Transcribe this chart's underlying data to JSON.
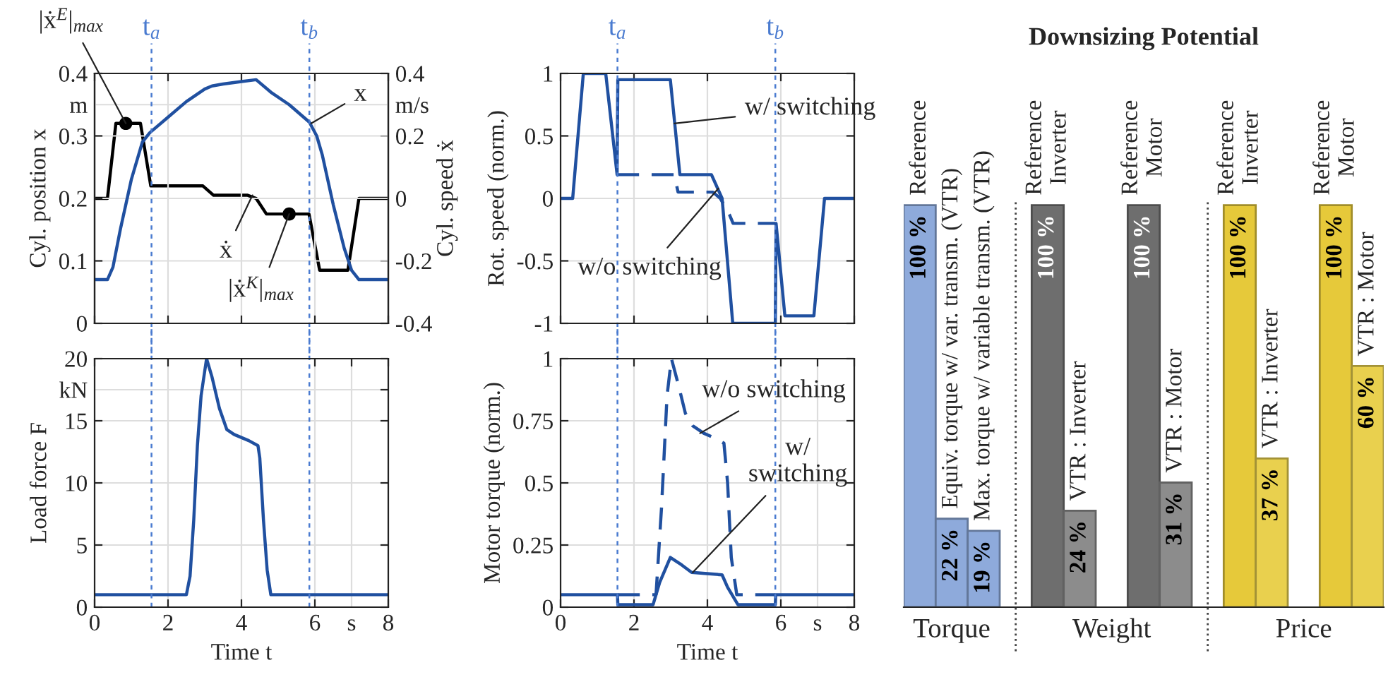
{
  "chart_data": [
    {
      "type": "line",
      "ylabel": "Cyl. position x",
      "y2label": "Cyl. speed ẋ",
      "xlim": [
        0,
        8
      ],
      "xticks": [
        0,
        2,
        4,
        6,
        8
      ],
      "ylim": [
        0,
        0.4
      ],
      "yticks": [
        0,
        0.1,
        0.2,
        0.3,
        {
          "value": 0.35,
          "label": "m"
        },
        0.4
      ],
      "y2lim": [
        -0.4,
        0.4
      ],
      "y2ticks": [
        -0.4,
        -0.2,
        0,
        0.2,
        {
          "value": 0.3,
          "label": "m/s"
        },
        0.4
      ],
      "tick_labels": "y",
      "grid": true,
      "series": [
        {
          "color": "#2050a0",
          "x": [
            0,
            0.35,
            0.5,
            0.7,
            1.0,
            1.3,
            1.5,
            2.0,
            2.5,
            3.0,
            3.2,
            3.5,
            4.0,
            4.4,
            4.8,
            5.3,
            5.85,
            6.05,
            6.2,
            6.5,
            6.8,
            7.0,
            7.2,
            8
          ],
          "values": [
            0.07,
            0.07,
            0.09,
            0.15,
            0.23,
            0.29,
            0.305,
            0.33,
            0.355,
            0.375,
            0.38,
            0.383,
            0.387,
            0.39,
            0.37,
            0.35,
            0.322,
            0.3,
            0.27,
            0.19,
            0.12,
            0.085,
            0.07,
            0.07
          ]
        },
        {
          "color": "#000000",
          "axis": "y2",
          "x": [
            0,
            0.35,
            0.58,
            1.25,
            1.53,
            2.95,
            3.24,
            4.17,
            4.4,
            4.68,
            5.84,
            6.13,
            6.9,
            7.2,
            8
          ],
          "values": [
            0,
            0,
            0.24,
            0.24,
            0.04,
            0.04,
            0.01,
            0.01,
            0,
            -0.05,
            -0.05,
            -0.23,
            -0.23,
            0,
            0
          ]
        },
        {
          "type": "scatter",
          "marker": "circle",
          "color": "#000000",
          "axis": "y2",
          "x": [
            0.85,
            5.3
          ],
          "values": [
            0.24,
            -0.05
          ]
        }
      ],
      "ref_lines": [
        {
          "axis": "x",
          "value": 1.55,
          "label": "t$_{a}$",
          "color": "#4a7bd0",
          "line_style": "dashed"
        },
        {
          "axis": "x",
          "value": 5.85,
          "label": "t$_{b}$",
          "color": "#4a7bd0",
          "line_style": "dashed"
        }
      ],
      "annotations": [
        {
          "text": "|ẋ$^{E}$|$_{max}$",
          "x": 0.85,
          "y": 0.32
        },
        {
          "text": "|ẋ$^{K}$|$_{max}$",
          "x": 5.3,
          "y": 0.175
        },
        {
          "text": "ẋ",
          "x": 4.3,
          "y": 0.205
        },
        {
          "text": "x",
          "x": 5.9,
          "y": 0.32
        }
      ]
    },
    {
      "type": "line",
      "ylabel": "Rot. speed (norm.)",
      "xlim": [
        0,
        8
      ],
      "xticks": [
        0,
        2,
        4,
        6,
        8
      ],
      "ylim": [
        -1,
        1
      ],
      "yticks": [
        -1,
        -0.5,
        0,
        0.5,
        1
      ],
      "tick_labels": "y",
      "grid": true,
      "series": [
        {
          "color": "#2050a0",
          "line_style": "dashed",
          "x": [
            1.54,
            3.1,
            3.2,
            4.15,
            4.35,
            4.6,
            4.7,
            5.85
          ],
          "values": [
            0.19,
            0.19,
            0.05,
            0.05,
            0,
            -0.13,
            -0.2,
            -0.2
          ]
        },
        {
          "color": "#2050a0",
          "x": [
            0,
            0.33,
            0.62,
            1.23,
            1.54,
            1.56,
            2.99,
            3.25,
            4.11,
            4.4,
            4.69,
            5.85,
            5.87,
            6.11,
            6.9,
            7.19,
            8
          ],
          "values": [
            0,
            0,
            1,
            1,
            0.19,
            0.95,
            0.95,
            0.19,
            0.19,
            0,
            -1,
            -1,
            -0.2,
            -0.94,
            -0.94,
            0,
            0
          ]
        }
      ],
      "ref_lines": [
        {
          "axis": "x",
          "value": 1.55,
          "label": "t$_{a}$",
          "color": "#4a7bd0",
          "line_style": "dashed"
        },
        {
          "axis": "x",
          "value": 5.85,
          "label": "t$_{b}$",
          "color": "#4a7bd0",
          "line_style": "dashed"
        }
      ],
      "annotations": [
        {
          "text": "w/ switching",
          "x": 3.1,
          "y": 0.6
        },
        {
          "text": "w/o switching",
          "x": 4.3,
          "y": 0.08
        }
      ]
    },
    {
      "type": "line",
      "ylabel": "Load force F",
      "xlabel": "Time t",
      "xlim": [
        0,
        8
      ],
      "xticks": [
        0,
        2,
        4,
        6,
        {
          "value": 7,
          "label": "s"
        },
        8
      ],
      "ylim": [
        0,
        20
      ],
      "yticks": [
        0,
        5,
        10,
        15,
        {
          "value": 17.5,
          "label": "kN"
        },
        20
      ],
      "grid": true,
      "series": [
        {
          "color": "#2050a0",
          "x": [
            0,
            2.5,
            2.6,
            2.7,
            2.8,
            2.9,
            3.05,
            3.2,
            3.4,
            3.6,
            3.8,
            4.2,
            4.45,
            4.5,
            4.6,
            4.7,
            4.8,
            8
          ],
          "values": [
            1,
            1,
            2.5,
            7,
            13,
            17,
            20,
            18.5,
            16,
            14.3,
            13.9,
            13.4,
            13,
            12,
            7,
            3,
            1,
            1
          ]
        }
      ],
      "ref_lines": [
        {
          "axis": "x",
          "value": 1.55,
          "color": "#4a7bd0",
          "line_style": "dashed"
        },
        {
          "axis": "x",
          "value": 5.85,
          "color": "#4a7bd0",
          "line_style": "dashed"
        }
      ]
    },
    {
      "type": "line",
      "ylabel": "Motor torque (norm.)",
      "xlabel": "Time t",
      "xlim": [
        0,
        8
      ],
      "xticks": [
        0,
        2,
        4,
        6,
        {
          "value": 7,
          "label": "s"
        },
        8
      ],
      "ylim": [
        0,
        1
      ],
      "yticks": [
        0,
        0.25,
        0.5,
        0.75,
        1
      ],
      "grid": true,
      "series": [
        {
          "color": "#2050a0",
          "line_style": "dashed",
          "x": [
            1.56,
            2.6,
            2.75,
            2.9,
            3.02,
            3.2,
            3.4,
            3.6,
            3.9,
            4.2,
            4.45,
            4.55,
            4.65,
            4.8,
            5.85
          ],
          "values": [
            0.05,
            0.05,
            0.4,
            0.85,
            1,
            0.9,
            0.78,
            0.73,
            0.7,
            0.68,
            0.66,
            0.5,
            0.2,
            0.05,
            0.05
          ]
        },
        {
          "color": "#2050a0",
          "x": [
            0,
            1.55,
            1.56,
            2.52,
            2.7,
            2.99,
            3.3,
            3.57,
            4.0,
            4.4,
            4.55,
            4.83,
            5.85,
            5.86,
            8
          ],
          "values": [
            0.05,
            0.05,
            0.01,
            0.01,
            0.1,
            0.2,
            0.17,
            0.14,
            0.135,
            0.13,
            0.08,
            0.01,
            0.01,
            0.05,
            0.05
          ]
        }
      ],
      "ref_lines": [
        {
          "axis": "x",
          "value": 1.55,
          "color": "#4a7bd0",
          "line_style": "dashed"
        },
        {
          "axis": "x",
          "value": 5.85,
          "color": "#4a7bd0",
          "line_style": "dashed"
        }
      ],
      "annotations": [
        {
          "text": "w/o switching",
          "x": 3.8,
          "y": 0.7
        },
        {
          "text": "w/\nswitching",
          "x": 3.6,
          "y": 0.14
        }
      ]
    },
    {
      "type": "bar",
      "title": "Downsizing Potential",
      "categories": [
        "Reference",
        "Equiv. torque w/ var. transm. (VTR)",
        "Max. torque w/ variable transm. (VTR)",
        null,
        "Reference\nInverter",
        "VTR : Inverter",
        null,
        "Reference\nMotor",
        "VTR : Motor",
        null,
        "Reference\nInverter",
        "VTR : Inverter",
        null,
        "Reference\nMotor",
        "VTR : Motor"
      ],
      "values": [
        100,
        22,
        19,
        null,
        100,
        24,
        null,
        100,
        31,
        null,
        100,
        37,
        null,
        100,
        60
      ],
      "value_labels": [
        "100 %",
        "22 %",
        "19 %",
        null,
        "100 %",
        "24 %",
        null,
        "100 %",
        "31 %",
        null,
        "100 %",
        "37 %",
        null,
        "100 %",
        "60 %"
      ],
      "colors": [
        "#8eaadb",
        "#8eaadb",
        "#8eaadb",
        null,
        "#6e6e6e",
        "#8c8c8c",
        null,
        "#6e6e6e",
        "#8c8c8c",
        null,
        "#e6c93a",
        "#e9d04e",
        null,
        "#e6c93a",
        "#e9d04e"
      ],
      "annotations": [
        "Torque",
        "Weight",
        "Price"
      ]
    }
  ]
}
